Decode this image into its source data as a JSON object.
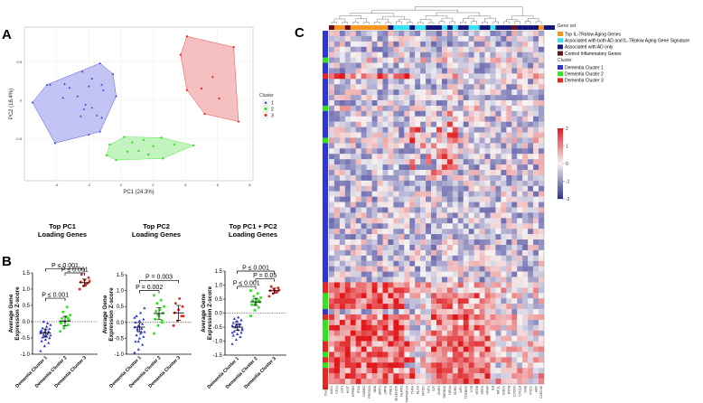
{
  "panels": {
    "a": "A",
    "b": "B",
    "c": "C"
  },
  "colors": {
    "c1": "#2e35d6",
    "c2": "#2ee61e",
    "c3": "#e8261f",
    "hull1": "#b9b9f2",
    "hull2": "#b8f2b5",
    "hull3": "#f5b5b5",
    "orange": "#f7941d",
    "cyan": "#33e4f5",
    "navy": "#14147a",
    "maroon": "#6b0f1a",
    "hm_low": "#2b2c8f",
    "hm_mid": "#f6f3f3",
    "hm_high": "#e0171b"
  },
  "chart_data": [
    {
      "id": "pca",
      "type": "scatter",
      "title": "",
      "xlabel": "PC1 (24.3%)",
      "ylabel": "PC2 (18.4%)",
      "xlim": [
        -6,
        8.2
      ],
      "ylim": [
        -1.05,
        0.95
      ],
      "xticks": [
        -4,
        -2,
        0,
        2,
        4,
        6,
        8
      ],
      "yticks": [
        0.5,
        0,
        -0.5
      ],
      "xtick_labels": [
        "-4",
        "-2",
        "0",
        "2",
        "4",
        "6",
        "8"
      ],
      "ytick_labels": [
        "0.5",
        "0",
        "-0.5"
      ],
      "legend_title": "Cluster",
      "legend_position": "right",
      "series": [
        {
          "name": "1",
          "color_key": "c1",
          "marker": "triangle",
          "points": [
            [
              -5.5,
              -0.03
            ],
            [
              -4.6,
              0.2
            ],
            [
              -2.4,
              0.37
            ],
            [
              -1.3,
              0.48
            ],
            [
              -0.5,
              0.34
            ],
            [
              -0.3,
              0.05
            ],
            [
              -1.3,
              -0.41
            ],
            [
              -2.0,
              -0.45
            ],
            [
              -4.1,
              -0.56
            ],
            [
              -3.6,
              0.03
            ],
            [
              -3.2,
              0.16
            ],
            [
              -3.5,
              0.21
            ],
            [
              -2.0,
              0.18
            ],
            [
              -1.8,
              0.28
            ],
            [
              -1.1,
              0.13
            ],
            [
              -1.2,
              0.2
            ],
            [
              -2.2,
              -0.06
            ],
            [
              -2.3,
              -0.12
            ],
            [
              -1.5,
              -0.2
            ],
            [
              -1.2,
              -0.23
            ],
            [
              -2.5,
              -0.21
            ],
            [
              -1.8,
              -0.1
            ],
            [
              -4.4,
              0.2
            ],
            [
              -2.7,
              0.05
            ]
          ]
        },
        {
          "name": "2",
          "color_key": "c2",
          "marker": "square",
          "points": [
            [
              -0.9,
              -0.72
            ],
            [
              -0.7,
              -0.58
            ],
            [
              0.2,
              -0.48
            ],
            [
              2.5,
              -0.49
            ],
            [
              4.5,
              -0.59
            ],
            [
              2.6,
              -0.76
            ],
            [
              -0.3,
              -0.78
            ],
            [
              0.7,
              -0.55
            ],
            [
              1.4,
              -0.52
            ],
            [
              2.0,
              -0.6
            ],
            [
              1.1,
              -0.66
            ],
            [
              3.3,
              -0.58
            ],
            [
              0.4,
              -0.67
            ],
            [
              1.7,
              -0.71
            ]
          ]
        },
        {
          "name": "3",
          "color_key": "c3",
          "marker": "circle",
          "points": [
            [
              4.1,
              0.83
            ],
            [
              7.0,
              0.69
            ],
            [
              7.3,
              -0.28
            ],
            [
              5.2,
              -0.18
            ],
            [
              4.1,
              0.13
            ],
            [
              3.7,
              0.59
            ],
            [
              5.7,
              0.3
            ],
            [
              6.1,
              0.02
            ],
            [
              5.0,
              0.15
            ]
          ]
        }
      ]
    },
    {
      "id": "b1",
      "type": "scatter",
      "title": "Top PC1\nLoading Genes",
      "title_lines": [
        "Top PC1",
        "Loading Genes"
      ],
      "ylabel": "Average Gene Expression Z-score",
      "ylabel_lines": [
        "Average Gene",
        "Expression Z-score"
      ],
      "categories": [
        "Dementia Cluster 1",
        "Dementia Cluster 2",
        "Dementia Cluster 3"
      ],
      "ylim": [
        -1.0,
        1.5
      ],
      "yticks": [
        -1.0,
        -0.5,
        0.0,
        0.5,
        1.0,
        1.5
      ],
      "ytick_labels": [
        "-1.0",
        "-0.5",
        "0.0",
        "0.5",
        "1.0",
        "1.5"
      ],
      "series": [
        {
          "name": "Dementia Cluster 1",
          "color_key": "c1",
          "marker": "triangle",
          "mean": -0.35,
          "sem": 0.07,
          "values": [
            -0.9,
            -0.75,
            -0.65,
            -0.6,
            -0.55,
            -0.5,
            -0.48,
            -0.45,
            -0.42,
            -0.4,
            -0.38,
            -0.35,
            -0.32,
            -0.3,
            -0.28,
            -0.25,
            -0.22,
            -0.2,
            -0.15,
            -0.1,
            0.0,
            -0.05,
            -0.3,
            -0.45
          ]
        },
        {
          "name": "Dementia Cluster 2",
          "color_key": "c2",
          "marker": "square",
          "mean": 0.02,
          "sem": 0.08,
          "values": [
            -0.3,
            -0.2,
            -0.1,
            -0.05,
            0.0,
            0.05,
            0.1,
            0.15,
            0.2,
            0.3,
            0.45,
            0.0,
            -0.15,
            0.1
          ]
        },
        {
          "name": "Dementia Cluster 3",
          "color_key": "c3",
          "marker": "circle",
          "mean": 1.2,
          "sem": 0.06,
          "values": [
            1.0,
            1.1,
            1.18,
            1.22,
            1.28,
            1.35,
            1.45,
            1.15,
            1.25
          ]
        }
      ],
      "brackets": [
        {
          "from": 0,
          "to": 2,
          "label": "P ≤ 0.001",
          "y": 1.62
        },
        {
          "from": 1,
          "to": 2,
          "label": "P ≤ 0.001",
          "y": 1.5
        },
        {
          "from": 0,
          "to": 1,
          "label": "P ≤ 0.001",
          "y": 0.72
        }
      ],
      "reference_line": 0
    },
    {
      "id": "b2",
      "type": "scatter",
      "title": "Top PC2\nLoading Genes",
      "title_lines": [
        "Top PC2",
        "Loading Genes"
      ],
      "ylabel": "Average Gene Expression Z-score",
      "ylabel_lines": [
        "Average Gene",
        "Expression Z-score"
      ],
      "categories": [
        "Dementia Cluster 1",
        "Dementia Cluster 2",
        "Dementia Cluster 3"
      ],
      "ylim": [
        -1.0,
        1.5
      ],
      "yticks": [
        -1.0,
        -0.5,
        0.0,
        0.5,
        1.0,
        1.5
      ],
      "ytick_labels": [
        "-1.0",
        "-0.5",
        "0.0",
        "0.5",
        "1.0",
        "1.5"
      ],
      "series": [
        {
          "name": "Dementia Cluster 1",
          "color_key": "c1",
          "marker": "triangle",
          "mean": -0.15,
          "sem": 0.08,
          "values": [
            -0.95,
            -0.85,
            -0.7,
            -0.6,
            -0.5,
            -0.45,
            -0.4,
            -0.35,
            -0.3,
            -0.25,
            -0.2,
            -0.15,
            -0.1,
            -0.05,
            0.0,
            0.05,
            0.1,
            0.2,
            0.3,
            0.45,
            -0.2,
            -0.3,
            0.15,
            -0.6
          ]
        },
        {
          "name": "Dementia Cluster 2",
          "color_key": "c2",
          "marker": "square",
          "mean": 0.28,
          "sem": 0.1,
          "values": [
            -0.35,
            -0.1,
            0.0,
            0.1,
            0.2,
            0.3,
            0.35,
            0.4,
            0.5,
            0.6,
            0.7,
            0.85,
            0.25,
            0.05
          ]
        },
        {
          "name": "Dementia Cluster 3",
          "color_key": "c3",
          "marker": "circle",
          "mean": 0.3,
          "sem": 0.13,
          "values": [
            -0.1,
            0.05,
            0.2,
            0.3,
            0.4,
            0.5,
            0.6,
            0.75,
            0.2
          ]
        }
      ],
      "brackets": [
        {
          "from": 0,
          "to": 2,
          "label": "P = 0.003",
          "y": 1.32
        },
        {
          "from": 0,
          "to": 1,
          "label": "P = 0.002",
          "y": 1.0
        }
      ],
      "reference_line": 0
    },
    {
      "id": "b3",
      "type": "scatter",
      "title": "Top PC1 + PC2\nLoading Genes",
      "title_lines": [
        "Top PC1 + PC2",
        "Loading Genes"
      ],
      "ylabel": "Average Gene Expression Z-score",
      "ylabel_lines": [
        "Average Gene",
        "Expression Z-score"
      ],
      "categories": [
        "Dementia Cluster 1",
        "Dementia Cluster 2",
        "Dementia Cluster 3"
      ],
      "ylim": [
        -1.5,
        1.5
      ],
      "yticks": [
        -1.5,
        -1.0,
        -0.5,
        0.0,
        0.5,
        1.0,
        1.5
      ],
      "ytick_labels": [
        "-1.5",
        "-1.0",
        "-0.5",
        "0.0",
        "0.5",
        "1.0",
        "1.5"
      ],
      "series": [
        {
          "name": "Dementia Cluster 1",
          "color_key": "c1",
          "marker": "triangle",
          "mean": -0.5,
          "sem": 0.06,
          "values": [
            -1.1,
            -0.95,
            -0.85,
            -0.8,
            -0.75,
            -0.7,
            -0.65,
            -0.6,
            -0.55,
            -0.5,
            -0.48,
            -0.45,
            -0.42,
            -0.4,
            -0.35,
            -0.3,
            -0.25,
            -0.2,
            -0.15,
            -0.6,
            -0.5,
            -0.4,
            -0.7,
            -0.3
          ]
        },
        {
          "name": "Dementia Cluster 2",
          "color_key": "c2",
          "marker": "square",
          "mean": 0.4,
          "sem": 0.07,
          "values": [
            -0.1,
            0.1,
            0.2,
            0.3,
            0.35,
            0.4,
            0.45,
            0.5,
            0.55,
            0.6,
            0.7,
            0.8,
            0.3,
            0.45
          ]
        },
        {
          "name": "Dementia Cluster 3",
          "color_key": "c3",
          "marker": "circle",
          "mean": 0.8,
          "sem": 0.05,
          "values": [
            0.6,
            0.7,
            0.75,
            0.8,
            0.85,
            0.9,
            0.95,
            0.78,
            0.82
          ]
        }
      ],
      "brackets": [
        {
          "from": 0,
          "to": 2,
          "label": "P ≤ 0.001",
          "y": 1.5
        },
        {
          "from": 1,
          "to": 2,
          "label": "P = 0.05",
          "y": 1.22
        },
        {
          "from": 0,
          "to": 1,
          "label": "P ≤ 0.001",
          "y": 0.95
        }
      ],
      "reference_line": 0
    },
    {
      "id": "heatmap",
      "type": "heatmap",
      "title": "",
      "rows": 66,
      "cols": 40,
      "colorbar": {
        "min": -2,
        "max": 2,
        "ticks": [
          2,
          1,
          0,
          -1,
          -2
        ],
        "tick_labels": [
          "2",
          "1",
          "0",
          "-1",
          "-2"
        ]
      },
      "row_annotation_label": "Cluster",
      "row_cluster_runs": [
        [
          1,
          5
        ],
        [
          2,
          1
        ],
        [
          1,
          2
        ],
        [
          3,
          1
        ],
        [
          1,
          5
        ],
        [
          2,
          1
        ],
        [
          1,
          5
        ],
        [
          2,
          1
        ],
        [
          1,
          26
        ],
        [
          3,
          2
        ],
        [
          2,
          3
        ],
        [
          1,
          1
        ],
        [
          3,
          1
        ],
        [
          2,
          4
        ],
        [
          3,
          2
        ],
        [
          2,
          1
        ],
        [
          3,
          1
        ],
        [
          2,
          1
        ],
        [
          3,
          4
        ]
      ],
      "col_annotation_runs": [
        [
          "maroon",
          1
        ],
        [
          "orange",
          2
        ],
        [
          "maroon",
          1
        ],
        [
          "orange",
          7
        ],
        [
          "navy",
          1
        ],
        [
          "cyan",
          3
        ],
        [
          "navy",
          1
        ],
        [
          "cyan",
          2
        ],
        [
          "navy",
          3
        ],
        [
          "cyan",
          1
        ],
        [
          "navy",
          1
        ],
        [
          "cyan",
          1
        ],
        [
          "navy",
          2
        ],
        [
          "cyan",
          2
        ],
        [
          "navy",
          2
        ],
        [
          "cyan",
          1
        ],
        [
          "navy",
          3
        ],
        [
          "maroon",
          1
        ],
        [
          "navy",
          4
        ],
        [
          "orange",
          1
        ],
        [
          "navy",
          2
        ]
      ],
      "genes": [
        "NAV1",
        "CFL1",
        "LTF1",
        "HIST",
        "GPRB3",
        "ITGA",
        "CAMK2",
        "PRSS23",
        "UBB",
        "SIRT1",
        "LRPB",
        "PMLS",
        "SELENOS",
        "NLRP3",
        "TNFRSF1A",
        "TNFA",
        "ALAS",
        "MYCN",
        "NIT1",
        "ILR",
        "CNEN",
        "TMSB10",
        "NR4A",
        "SDHD",
        "AIF1",
        "TGFBR3",
        "CTB",
        "VEGB",
        "SPPS",
        "GFAP",
        "IL8",
        "MT1L",
        "EGLN",
        "IFITM",
        "CXCR3",
        "CXCL8",
        "GAB",
        "NYD1",
        "AKR",
        "CLEC4E"
      ],
      "legend": {
        "gene_set_title": "Gene set",
        "gene_sets": [
          {
            "label": "Top IL-7Rαlow Aging Genes",
            "color_key": "orange"
          },
          {
            "label": "Associated with both AD and IL-7Rαlow Aging Gene Signature",
            "color_key": "cyan"
          },
          {
            "label": "Associated with AD only",
            "color_key": "navy"
          },
          {
            "label": "Control Inflammatory Genes",
            "color_key": "maroon"
          }
        ],
        "cluster_title": "Cluster",
        "clusters": [
          {
            "label": "Dementia Cluster 1",
            "color_key": "c1"
          },
          {
            "label": "Dementia Cluster 2",
            "color_key": "c2"
          },
          {
            "label": "Dementia Cluster 3",
            "color_key": "c3"
          }
        ]
      }
    }
  ]
}
